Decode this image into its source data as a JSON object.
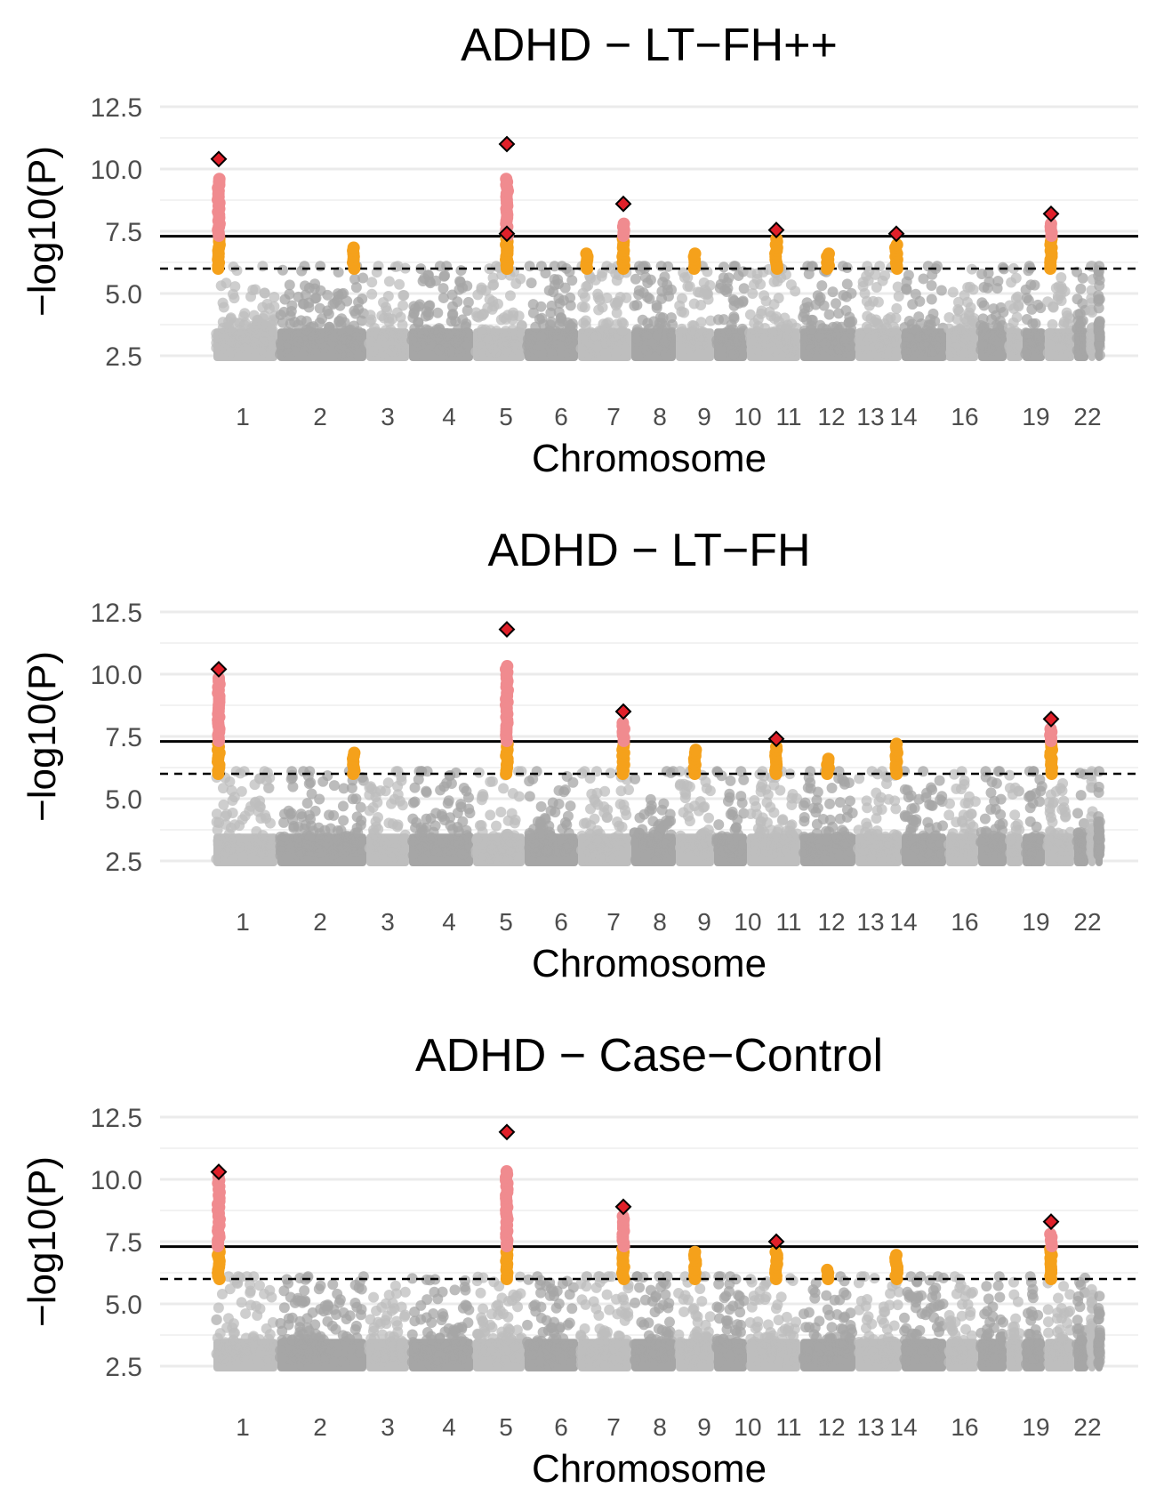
{
  "colors": {
    "chrom_light": "#bebebe",
    "chrom_dark": "#a6a6a6",
    "suggestive": "#f5a11b",
    "significant": "#f08b8f",
    "lead_fill": "#e0202a",
    "lead_stroke": "#000000"
  },
  "chart_data": [
    {
      "type": "scatter",
      "subtype": "manhattan",
      "title": "ADHD − LT−FH++",
      "xlabel": "Chromosome",
      "ylabel": "−log10(P)",
      "ylim": [
        2.5,
        12.5
      ],
      "yticks": [
        "2.5",
        "5.0",
        "7.5",
        "10.0",
        "12.5"
      ],
      "genome_wide_line": 7.3,
      "suggestive_line": 6.0,
      "x_tick_labels": [
        "1",
        "2",
        "3",
        "4",
        "5",
        "6",
        "7",
        "8",
        "9",
        "10",
        "11",
        "12",
        "13",
        "14",
        "16",
        "19",
        "22"
      ],
      "peaks": [
        {
          "chrom": 1,
          "max": 9.6,
          "lead": 10.4
        },
        {
          "chrom": 2,
          "max": 6.9
        },
        {
          "chrom": 5,
          "max": 9.7,
          "lead": 11.0
        },
        {
          "chrom": 5,
          "max": 7.0,
          "lead": 7.4
        },
        {
          "chrom": 7,
          "max": 7.9,
          "lead": 8.6
        },
        {
          "chrom": 7,
          "max": 6.6
        },
        {
          "chrom": 9,
          "max": 6.7
        },
        {
          "chrom": 11,
          "max": 7.2,
          "lead": 7.55
        },
        {
          "chrom": 12,
          "max": 6.6
        },
        {
          "chrom": 14,
          "max": 7.0,
          "lead": 7.4
        },
        {
          "chrom": 19,
          "max": 7.8,
          "lead": 8.2
        }
      ]
    },
    {
      "type": "scatter",
      "subtype": "manhattan",
      "title": "ADHD − LT−FH",
      "xlabel": "Chromosome",
      "ylabel": "−log10(P)",
      "ylim": [
        2.5,
        12.5
      ],
      "yticks": [
        "2.5",
        "5.0",
        "7.5",
        "10.0",
        "12.5"
      ],
      "genome_wide_line": 7.3,
      "suggestive_line": 6.0,
      "x_tick_labels": [
        "1",
        "2",
        "3",
        "4",
        "5",
        "6",
        "7",
        "8",
        "9",
        "10",
        "11",
        "12",
        "13",
        "14",
        "16",
        "19",
        "22"
      ],
      "peaks": [
        {
          "chrom": 1,
          "max": 9.9,
          "lead": 10.2
        },
        {
          "chrom": 2,
          "max": 6.9
        },
        {
          "chrom": 5,
          "max": 10.4,
          "lead": 11.8
        },
        {
          "chrom": 7,
          "max": 8.1,
          "lead": 8.5
        },
        {
          "chrom": 9,
          "max": 7.0
        },
        {
          "chrom": 11,
          "max": 7.1,
          "lead": 7.4
        },
        {
          "chrom": 12,
          "max": 6.6
        },
        {
          "chrom": 14,
          "max": 7.2
        },
        {
          "chrom": 19,
          "max": 7.8,
          "lead": 8.2
        }
      ]
    },
    {
      "type": "scatter",
      "subtype": "manhattan",
      "title": "ADHD − Case−Control",
      "xlabel": "Chromosome",
      "ylabel": "−log10(P)",
      "ylim": [
        2.5,
        12.5
      ],
      "yticks": [
        "2.5",
        "5.0",
        "7.5",
        "10.0",
        "12.5"
      ],
      "genome_wide_line": 7.3,
      "suggestive_line": 6.0,
      "x_tick_labels": [
        "1",
        "2",
        "3",
        "4",
        "5",
        "6",
        "7",
        "8",
        "9",
        "10",
        "11",
        "12",
        "13",
        "14",
        "16",
        "19",
        "22"
      ],
      "peaks": [
        {
          "chrom": 1,
          "max": 10.1,
          "lead": 10.3
        },
        {
          "chrom": 5,
          "max": 10.4,
          "lead": 11.9
        },
        {
          "chrom": 7,
          "max": 8.6,
          "lead": 8.9
        },
        {
          "chrom": 9,
          "max": 7.1
        },
        {
          "chrom": 11,
          "max": 7.1,
          "lead": 7.5
        },
        {
          "chrom": 12,
          "max": 6.4
        },
        {
          "chrom": 14,
          "max": 7.0
        },
        {
          "chrom": 19,
          "max": 7.9,
          "lead": 8.3
        }
      ]
    }
  ]
}
